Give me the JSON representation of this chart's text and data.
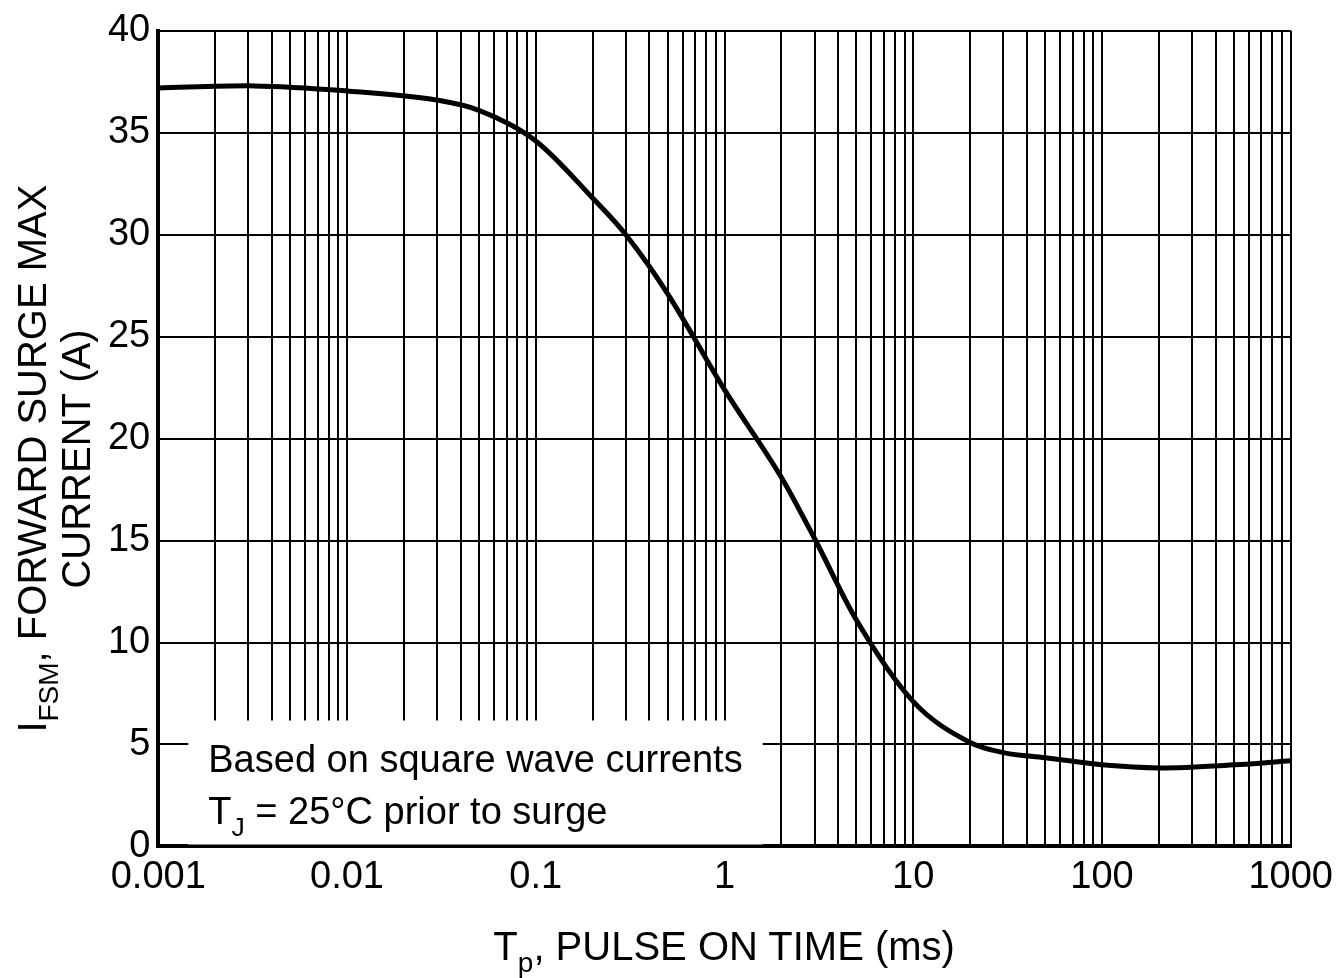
{
  "chart_data": {
    "type": "line",
    "xlabel": "T$_{p}$, PULSE ON TIME (ms)",
    "ylabel": "I$_{FSM}$, FORWARD SURGE MAX\nCURRENT (A)",
    "log": "x",
    "grid": true,
    "legend": false,
    "marker": "none",
    "line_style": "solid",
    "annotations": [
      "Based on square wave currents\nT$_{J}$ = 25°C prior to surge"
    ],
    "xlim": [
      0.001,
      1000
    ],
    "ylim": [
      0,
      40
    ],
    "xticks": [
      0.001,
      {
        "value": 0.002,
        "label": null
      },
      {
        "value": 0.003,
        "label": null
      },
      {
        "value": 0.004,
        "label": null
      },
      {
        "value": 0.005,
        "label": null
      },
      {
        "value": 0.006,
        "label": null
      },
      {
        "value": 0.007,
        "label": null
      },
      {
        "value": 0.008,
        "label": null
      },
      {
        "value": 0.009,
        "label": null
      },
      0.01,
      {
        "value": 0.02,
        "label": null
      },
      {
        "value": 0.03,
        "label": null
      },
      {
        "value": 0.04,
        "label": null
      },
      {
        "value": 0.05,
        "label": null
      },
      {
        "value": 0.06,
        "label": null
      },
      {
        "value": 0.07,
        "label": null
      },
      {
        "value": 0.08,
        "label": null
      },
      {
        "value": 0.09,
        "label": null
      },
      0.1,
      {
        "value": 0.2,
        "label": null
      },
      {
        "value": 0.3,
        "label": null
      },
      {
        "value": 0.4,
        "label": null
      },
      {
        "value": 0.5,
        "label": null
      },
      {
        "value": 0.6,
        "label": null
      },
      {
        "value": 0.7,
        "label": null
      },
      {
        "value": 0.8,
        "label": null
      },
      {
        "value": 0.9,
        "label": null
      },
      1,
      {
        "value": 2,
        "label": null
      },
      {
        "value": 3,
        "label": null
      },
      {
        "value": 4,
        "label": null
      },
      {
        "value": 5,
        "label": null
      },
      {
        "value": 6,
        "label": null
      },
      {
        "value": 7,
        "label": null
      },
      {
        "value": 8,
        "label": null
      },
      {
        "value": 9,
        "label": null
      },
      10,
      {
        "value": 20,
        "label": null
      },
      {
        "value": 30,
        "label": null
      },
      {
        "value": 40,
        "label": null
      },
      {
        "value": 50,
        "label": null
      },
      {
        "value": 60,
        "label": null
      },
      {
        "value": 70,
        "label": null
      },
      {
        "value": 80,
        "label": null
      },
      {
        "value": 90,
        "label": null
      },
      100,
      {
        "value": 200,
        "label": null
      },
      {
        "value": 300,
        "label": null
      },
      {
        "value": 400,
        "label": null
      },
      {
        "value": 500,
        "label": null
      },
      {
        "value": 600,
        "label": null
      },
      {
        "value": 700,
        "label": null
      },
      {
        "value": 800,
        "label": null
      },
      {
        "value": 900,
        "label": null
      },
      1000
    ],
    "yticks": [
      0,
      5,
      10,
      15,
      20,
      25,
      30,
      35,
      40
    ],
    "series": [
      {
        "color": "#000000",
        "x": [
          0.001,
          0.003,
          0.01,
          0.03,
          0.05,
          0.1,
          0.2,
          0.3,
          0.5,
          1,
          2,
          3,
          5,
          10,
          20,
          30,
          50,
          100,
          200,
          500,
          1000
        ],
        "values": [
          37.2,
          37.3,
          37.05,
          36.6,
          36.1,
          34.6,
          31.8,
          30.0,
          27.1,
          22.4,
          18.1,
          15.1,
          11.1,
          7.1,
          5.1,
          4.6,
          4.35,
          4.0,
          3.85,
          4.0,
          4.2
        ]
      }
    ]
  }
}
